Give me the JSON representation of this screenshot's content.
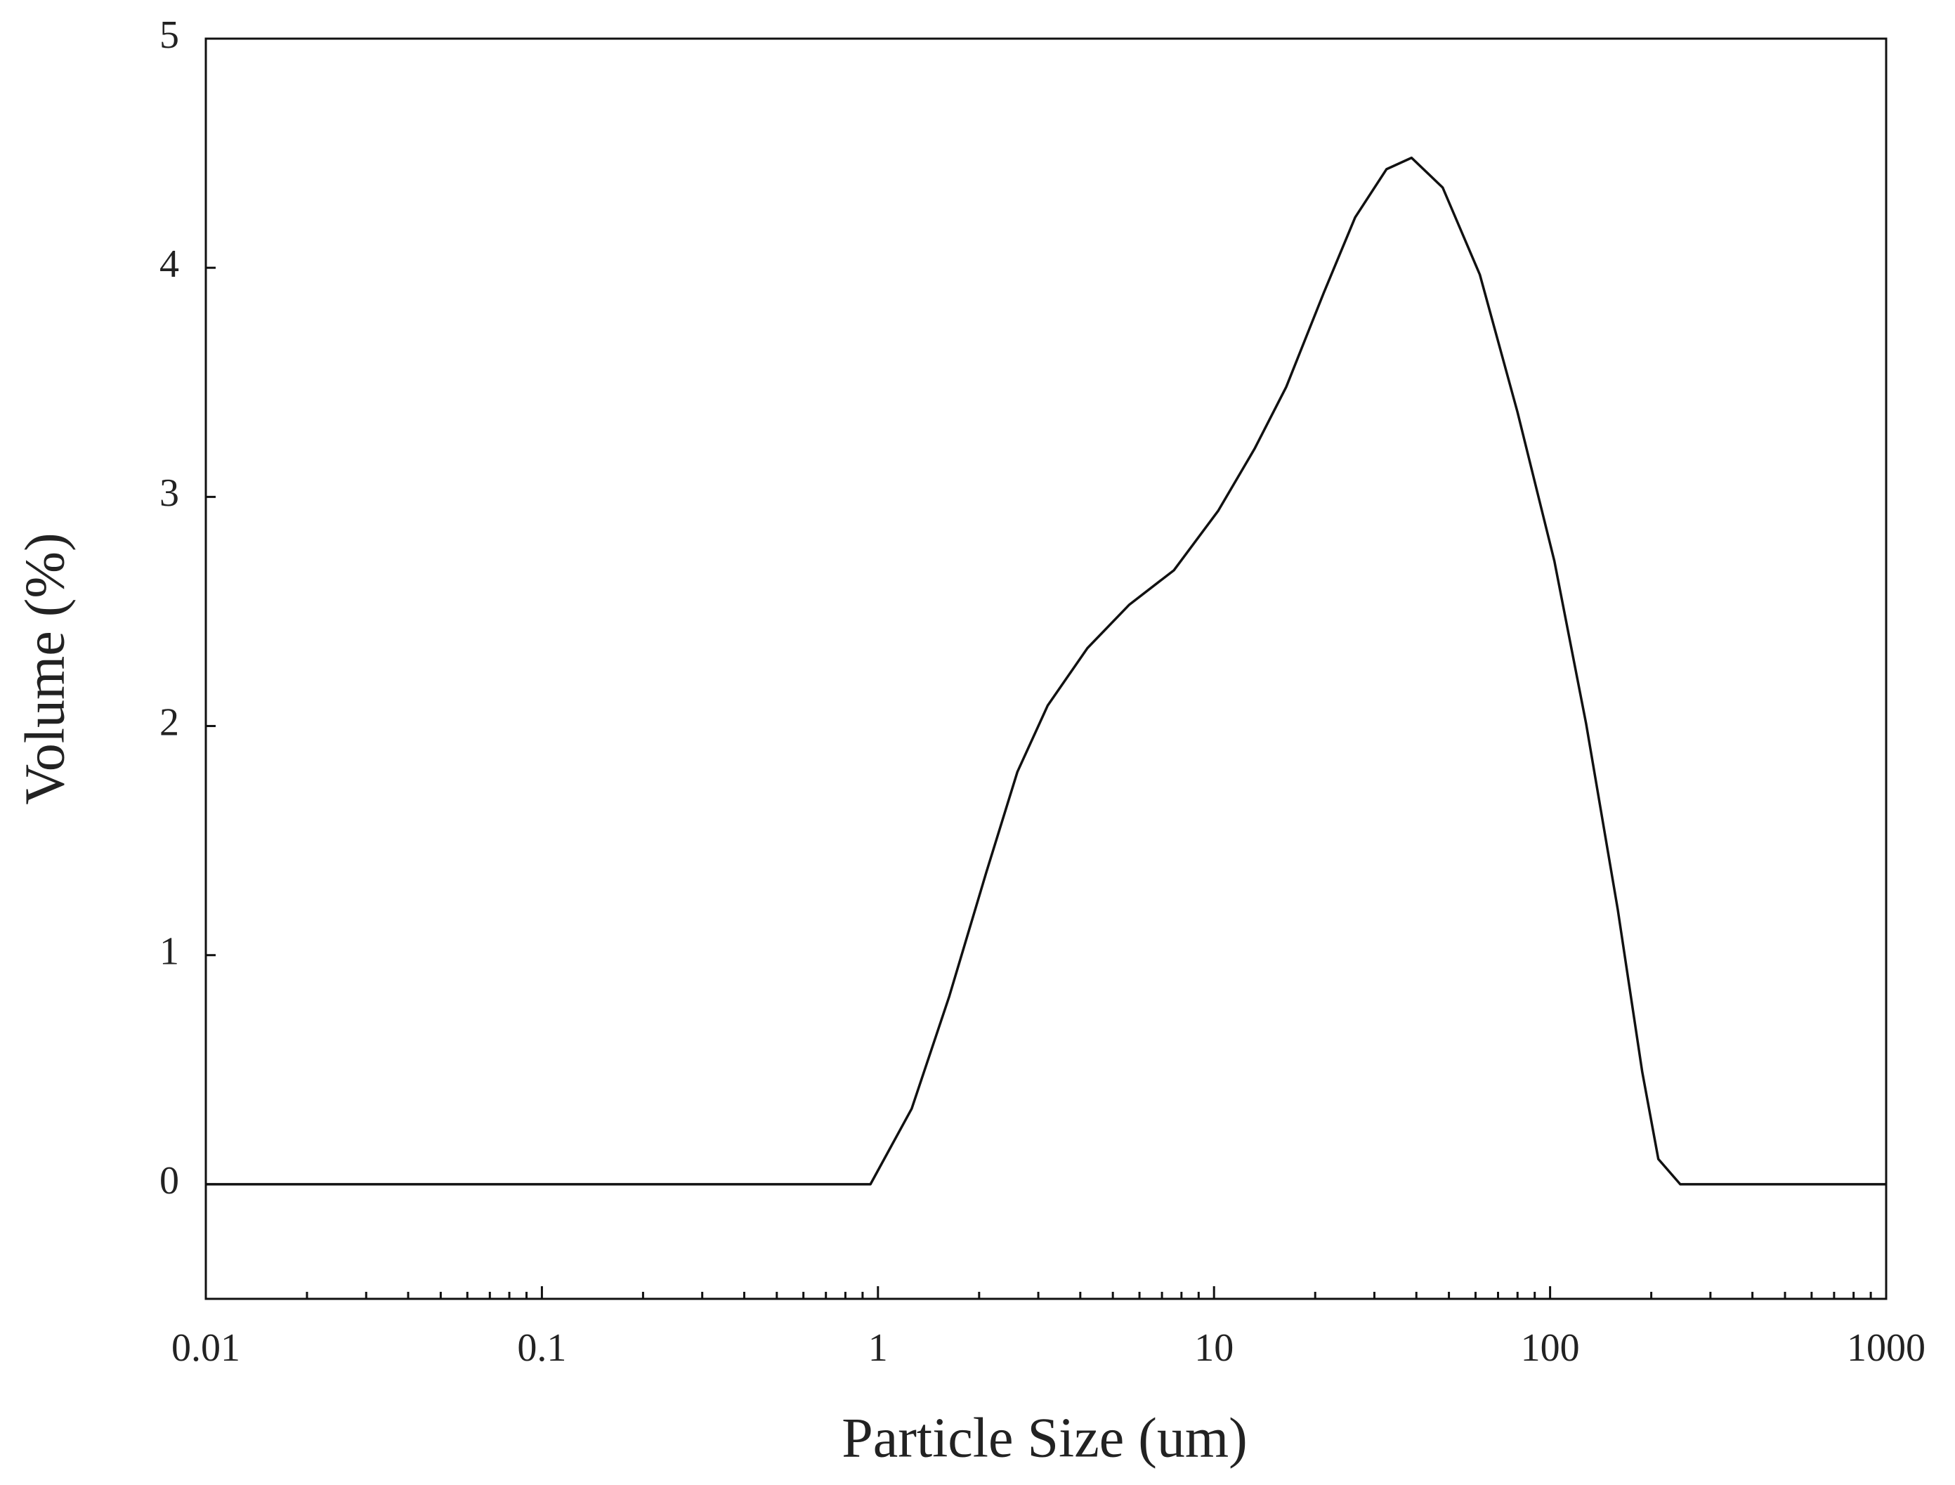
{
  "chart_data": {
    "type": "line",
    "x_label": "Particle Size (um)",
    "y_label": "Volume (%)",
    "x_scale": "log",
    "xlim": [
      0.01,
      1000
    ],
    "xticks": [
      0.01,
      0.1,
      1,
      10,
      100,
      1000
    ],
    "xminorticks": [
      0.02,
      0.03,
      0.04,
      0.05,
      0.06,
      0.07,
      0.08,
      0.09,
      0.2,
      0.3,
      0.4,
      0.5,
      0.6,
      0.7,
      0.8,
      0.9,
      2,
      3,
      4,
      5,
      6,
      7,
      8,
      9,
      20,
      30,
      40,
      50,
      60,
      70,
      80,
      90,
      200,
      300,
      400,
      500,
      600,
      700,
      800,
      900
    ],
    "ylim": [
      -0.5,
      5
    ],
    "yticks": [
      0,
      1,
      2,
      3,
      4,
      5
    ],
    "grid": false,
    "x": [
      0.01,
      0.95,
      1.26,
      1.63,
      2.1,
      2.6,
      3.2,
      4.2,
      5.6,
      7.6,
      10.3,
      13.2,
      16.4,
      21.2,
      26.3,
      32.6,
      38.7,
      47.9,
      61.8,
      80,
      103,
      128,
      159,
      188,
      210,
      244,
      1000
    ],
    "series": [
      {
        "color": "#111111",
        "values": [
          0,
          0,
          0.33,
          0.82,
          1.36,
          1.8,
          2.09,
          2.34,
          2.53,
          2.68,
          2.94,
          3.21,
          3.48,
          3.89,
          4.22,
          4.43,
          4.48,
          4.35,
          3.97,
          3.37,
          2.72,
          2.01,
          1.2,
          0.49,
          0.11,
          0,
          0
        ]
      }
    ]
  }
}
